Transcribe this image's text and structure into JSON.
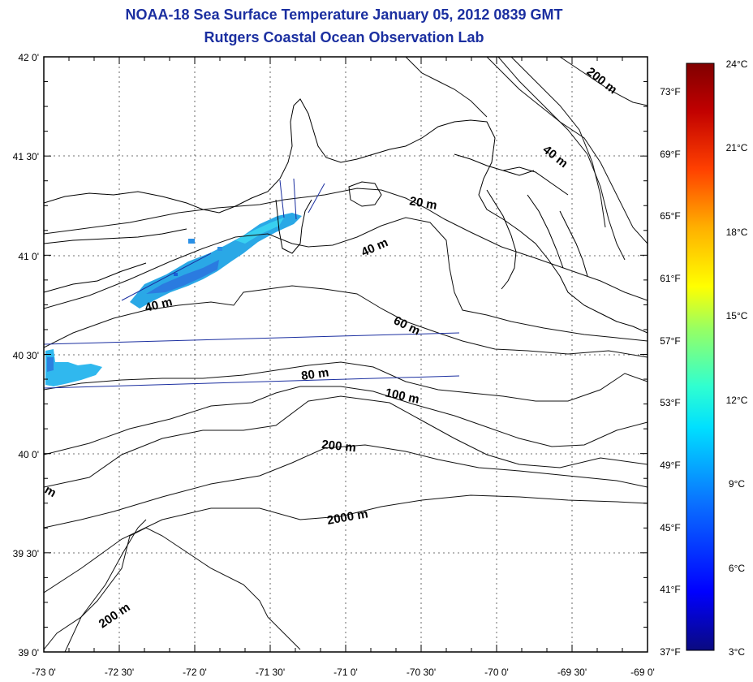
{
  "header": {
    "title": "NOAA-18 Sea Surface Temperature January 05, 2012 0839 GMT",
    "subtitle": "Rutgers Coastal Ocean Observation Lab"
  },
  "map": {
    "lat_labels": [
      "42 0'",
      "41 30'",
      "41 0'",
      "40 30'",
      "40 0'",
      "39 30'",
      "39 0'"
    ],
    "lon_labels": [
      "-73 0'",
      "-72 30'",
      "-72 0'",
      "-71 30'",
      "-71 0'",
      "-70 30'",
      "-70 0'",
      "-69 30'",
      "-69 0'"
    ],
    "lat_range": [
      39,
      42
    ],
    "lon_range": [
      -73,
      -69
    ],
    "grid": true,
    "contour_labels": [
      "200 m",
      "40 m",
      "20 m",
      "40 m",
      "40 m",
      "60 m",
      "80 m",
      "100 m",
      "200 m",
      "2000 m",
      "200 m",
      "m"
    ]
  },
  "colorbar": {
    "celsius_labels": [
      "24°C",
      "21°C",
      "18°C",
      "15°C",
      "12°C",
      "9°C",
      "6°C",
      "3°C"
    ],
    "fahrenheit_labels": [
      "73°F",
      "69°F",
      "65°F",
      "61°F",
      "57°F",
      "53°F",
      "49°F",
      "45°F",
      "41°F",
      "37°F"
    ],
    "range_c": [
      3,
      24
    ],
    "colors": [
      "#0a0a80",
      "#0000ff",
      "#0a70ff",
      "#00e0ff",
      "#30ffd0",
      "#9aff60",
      "#ffff00",
      "#ffb000",
      "#ff4000",
      "#c00000",
      "#800000"
    ]
  },
  "colors": {
    "title": "#1b2fa0",
    "coast": "#000000",
    "track": "#1b2fa0",
    "sst_patch": "#30b8e8"
  }
}
